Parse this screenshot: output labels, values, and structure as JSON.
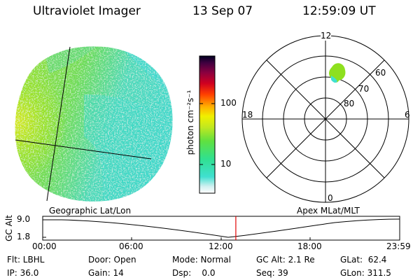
{
  "header": {
    "title": "Ultraviolet Imager",
    "date": "13 Sep 07",
    "time": "12:59:09 UT"
  },
  "colorbar": {
    "unit_label": "photon cm⁻²s⁻¹",
    "ticks": [
      "100",
      "10"
    ]
  },
  "polar": {
    "clock_labels": [
      "12",
      "18",
      "6",
      "0"
    ],
    "ring_labels": [
      "60",
      "70",
      "80"
    ]
  },
  "timeline": {
    "left_label": "Geographic Lat/Lon",
    "right_label": "Apex MLat/MLT",
    "axis_title": "GC Alt",
    "y_ticks": [
      "9.0",
      "1.8"
    ],
    "x_ticks": [
      "00:00",
      "06:00",
      "12:00",
      "18:00",
      "23:59"
    ],
    "current_time_fraction": 0.541
  },
  "status": {
    "col1": [
      "Flt: LBHL",
      "IP: 36.0"
    ],
    "col2": [
      "Door: Open",
      "Gain: 14"
    ],
    "col3": [
      "Mode: Normal",
      "Dsp:    0.0"
    ],
    "col4": [
      "GC Alt: 2.1 Re",
      "Seq: 39"
    ],
    "col5": [
      "GLat:  62.4",
      "GLon: 311.5"
    ]
  },
  "colors": {
    "cyan": "#40e0d0",
    "green": "#8ee01e",
    "yellow": "#d4e81a",
    "marker": "#e00000"
  }
}
